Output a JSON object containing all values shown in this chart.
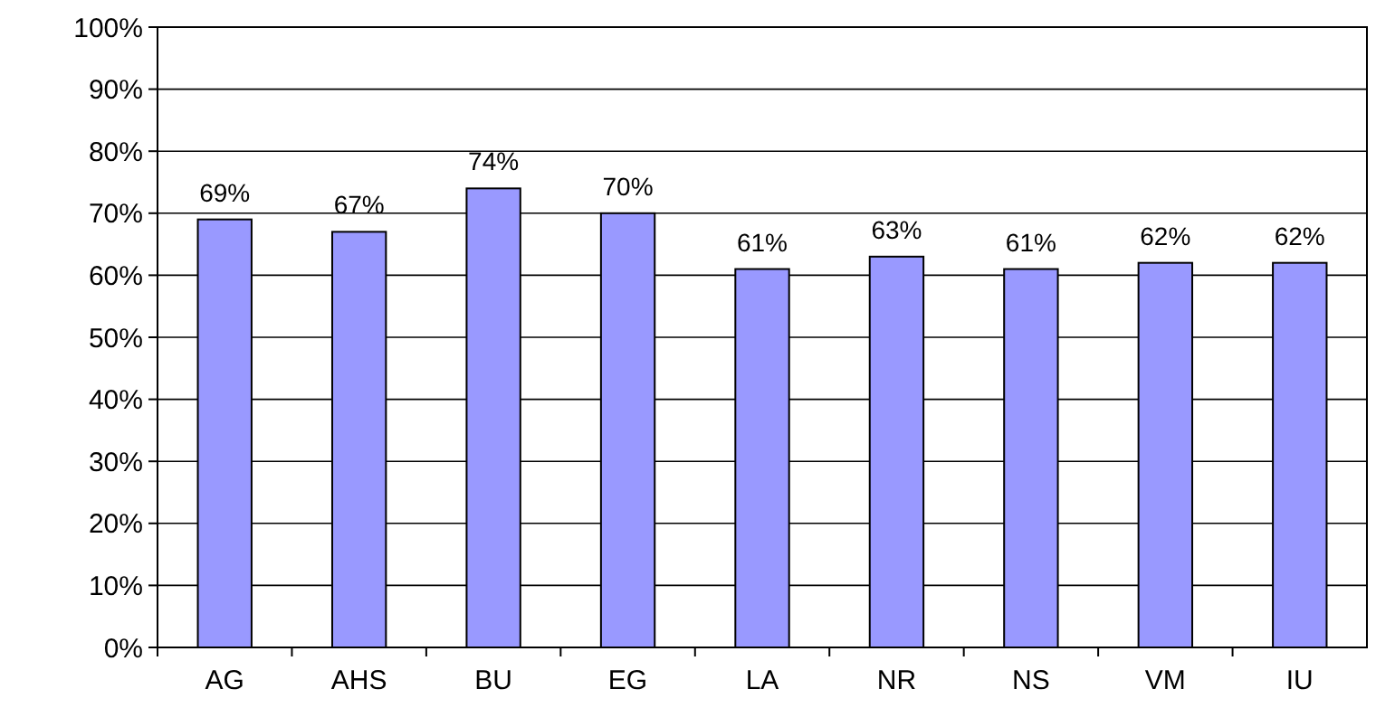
{
  "chart_data": {
    "type": "bar",
    "categories": [
      "AG",
      "AHS",
      "BU",
      "EG",
      "LA",
      "NR",
      "NS",
      "VM",
      "IU"
    ],
    "values": [
      69,
      67,
      74,
      70,
      61,
      63,
      61,
      62,
      62
    ],
    "value_labels": [
      "69%",
      "67%",
      "74%",
      "70%",
      "61%",
      "63%",
      "61%",
      "62%",
      "62%"
    ],
    "color": "#9999ff",
    "ylim": [
      0,
      100
    ],
    "yticks": [
      {
        "value": 0,
        "label": "0%"
      },
      {
        "value": 10,
        "label": "10%"
      },
      {
        "value": 20,
        "label": "20%"
      },
      {
        "value": 30,
        "label": "30%"
      },
      {
        "value": 40,
        "label": "40%"
      },
      {
        "value": 50,
        "label": "50%"
      },
      {
        "value": 60,
        "label": "60%"
      },
      {
        "value": 70,
        "label": "70%"
      },
      {
        "value": 80,
        "label": "80%"
      },
      {
        "value": 90,
        "label": "90%"
      },
      {
        "value": 100,
        "label": "100%"
      }
    ],
    "grid": "y"
  }
}
